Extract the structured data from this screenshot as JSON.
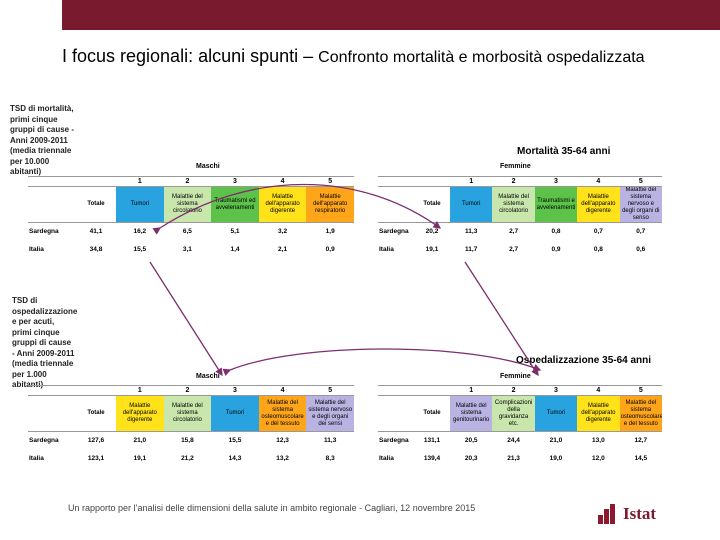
{
  "slide": {
    "title": "I focus regionali: alcuni spunti –",
    "title_rest": "Confronto mortalità e morbosità ospedalizzata",
    "footer": "Un rapporto per l’analisi delle dimensioni della salute in ambito regionale - Cagliari, 12 novembre 2015",
    "logo_text": "Istat"
  },
  "colors": {
    "topbar": "#7a1a2e",
    "blue": "#29a3e0",
    "light_green": "#c9e6ad",
    "green": "#5cc24a",
    "yellow": "#ffe21a",
    "orange": "#ffa51a",
    "lavender": "#b9b3e3",
    "arrow": "#7d2e6e"
  },
  "mortality": {
    "note": "TSD di mortalità,\nprimi cinque\ngruppi di cause -\nAnni 2009-2011\n(media triennale\nper 10.000\nabitanti)",
    "heading": "Mortalità 35-64 anni",
    "males": {
      "group": "Maschi",
      "total_label": "Totale",
      "ranks": [
        "1",
        "2",
        "3",
        "4",
        "5"
      ],
      "causes": [
        "Tumori",
        "Malattie del sistema circolatorio",
        "Traumatismi ed avvelenamenti",
        "Malattie dell'apparato digerente",
        "Malattie dell'apparato respiratorio"
      ],
      "rows": [
        {
          "region": "Sardegna",
          "total": "41,1",
          "values": [
            "16,2",
            "6,5",
            "5,1",
            "3,2",
            "1,9"
          ]
        },
        {
          "region": "Italia",
          "total": "34,8",
          "values": [
            "15,5",
            "3,1",
            "1,4",
            "2,1",
            "0,9"
          ]
        }
      ]
    },
    "females": {
      "group": "Femmine",
      "total_label": "Totale",
      "ranks": [
        "1",
        "2",
        "3",
        "4",
        "5"
      ],
      "causes": [
        "Tumori",
        "Malattie del sistema circolatorio",
        "Traumatismi e avvelenamenti",
        "Malattie dell'apparato digerente",
        "Malattie del sistema nervoso e degli organi di senso"
      ],
      "rows": [
        {
          "region": "Sardegna",
          "total": "20,2",
          "values": [
            "11,3",
            "2,7",
            "0,8",
            "0,7",
            "0,7"
          ]
        },
        {
          "region": "Italia",
          "total": "19,1",
          "values": [
            "11,7",
            "2,7",
            "0,9",
            "0,8",
            "0,6"
          ]
        }
      ]
    }
  },
  "hospital": {
    "note": "TSD di\nospedalizzazione\ne per acuti,\nprimi cinque\ngruppi di cause\n- Anni 2009-2011\n(media triennale\nper 1.000\nabitanti)",
    "heading": "Ospedalizzazione 35-64 anni",
    "males": {
      "group": "Maschi",
      "total_label": "Totale",
      "ranks": [
        "1",
        "2",
        "3",
        "4",
        "5"
      ],
      "causes": [
        "Malattie dell'apparato digerente",
        "Malattie del sistema circolatorio",
        "Tumori",
        "Malattie del sistema osteomuscolare e del tessuto",
        "Malattie del sistema nervoso e degli organi dei sensi"
      ],
      "rows": [
        {
          "region": "Sardegna",
          "total": "127,6",
          "values": [
            "21,0",
            "15,8",
            "15,5",
            "12,3",
            "11,3"
          ]
        },
        {
          "region": "Italia",
          "total": "123,1",
          "values": [
            "19,1",
            "21,2",
            "14,3",
            "13,2",
            "8,3"
          ]
        }
      ]
    },
    "females": {
      "group": "Femmine",
      "total_label": "Totale",
      "ranks": [
        "1",
        "2",
        "3",
        "4",
        "5"
      ],
      "causes": [
        "Malattie del sistema genitourinario",
        "Complicazioni della gravidanza etc.",
        "Tumori",
        "Malattie dell'apparato digerente",
        "Malattie del sistema osteomuscolare e del tessuto"
      ],
      "rows": [
        {
          "region": "Sardegna",
          "total": "131,1",
          "values": [
            "20,5",
            "24,4",
            "21,0",
            "13,0",
            "12,7"
          ]
        },
        {
          "region": "Italia",
          "total": "139,4",
          "values": [
            "20,3",
            "21,3",
            "19,0",
            "12,0",
            "14,5"
          ]
        }
      ]
    }
  }
}
